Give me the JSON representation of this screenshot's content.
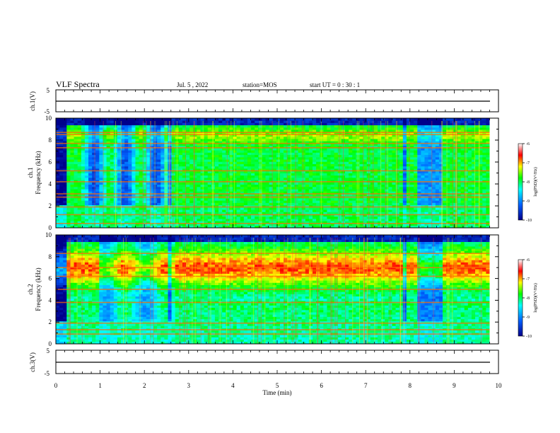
{
  "header": {
    "title": "VLF Spectra",
    "date": "Jul.  5  , 2022",
    "station": "station=MOS",
    "start": "start  UT  =   0 : 30 : 1"
  },
  "colors": {
    "low": "#00008b",
    "mid_low": "#00ffff",
    "mid": "#00ff00",
    "mid_high": "#ffff00",
    "high": "#ff0000",
    "top": "#ffffff"
  },
  "chart_data": [
    {
      "type": "line",
      "panel": "ch1-voltage",
      "ylabel": "ch.1(V)",
      "ylim": [
        -5,
        5
      ],
      "yticks": [
        "5",
        "-5"
      ],
      "series": [
        {
          "values_desc": "flat",
          "level": -1
        }
      ]
    },
    {
      "type": "heatmap",
      "panel": "ch1-spectrogram",
      "ylabel_line1": "ch.1",
      "ylabel_line2": "Frequency (kHz)",
      "ylim": [
        0,
        10
      ],
      "yticks": [
        "0",
        "2",
        "4",
        "6",
        "8",
        "10"
      ],
      "xlim": [
        0,
        10
      ],
      "data_end_min": 9.8,
      "colorbar": {
        "label": "log(PSD)(V²/Hz)",
        "ticks": [
          "-6",
          "-7",
          "-8",
          "-9",
          "-10"
        ],
        "range": [
          -10,
          -6
        ]
      },
      "bands_khz": [
        0.4,
        1.2,
        1.9,
        2.8,
        3.1,
        4.2,
        5.2,
        7.3,
        7.7,
        8.5,
        8.7
      ]
    },
    {
      "type": "heatmap",
      "panel": "ch2-spectrogram",
      "ylabel_line1": "ch.2",
      "ylabel_line2": "Frequency (kHz)",
      "ylim": [
        0,
        10
      ],
      "yticks": [
        "0",
        "2",
        "4",
        "6",
        "8",
        "10"
      ],
      "xlim": [
        0,
        10
      ],
      "data_end_min": 9.8,
      "colorbar": {
        "label": "log(PSD)(V²/Hz)",
        "ticks": [
          "-6",
          "-7",
          "-8",
          "-9",
          "-10"
        ],
        "range": [
          -10,
          -6
        ]
      },
      "bands_khz": [
        0.9,
        1.3,
        1.9,
        3.8,
        5.0,
        6.2,
        7.0,
        8.3
      ]
    },
    {
      "type": "line",
      "panel": "ch3-voltage",
      "ylabel": "ch.3(V)",
      "ylim": [
        -5,
        5
      ],
      "yticks": [
        "5",
        "-5"
      ],
      "series": [
        {
          "values_desc": "flat",
          "level": -1
        }
      ]
    }
  ],
  "xaxis": {
    "label": "Time  (min)",
    "ticks": [
      "0",
      "1",
      "2",
      "3",
      "4",
      "5",
      "6",
      "7",
      "8",
      "9",
      "10"
    ]
  }
}
